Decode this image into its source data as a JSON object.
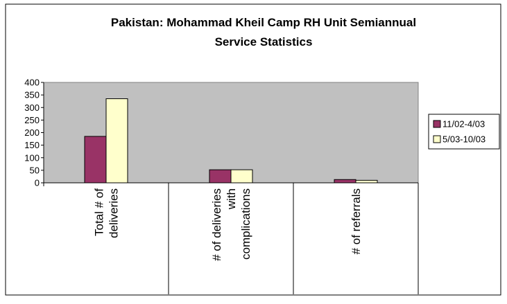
{
  "chart_data": {
    "type": "bar",
    "title": "Pakistan: Mohammad Kheil Camp RH Unit Semiannual Service Statistics",
    "categories": [
      "Total # of deliveries",
      "# of deliveries with complications",
      "# of referrals"
    ],
    "series": [
      {
        "name": "11/02-4/03",
        "color": "#993366",
        "values": [
          185,
          52,
          13
        ]
      },
      {
        "name": "5/03-10/03",
        "color": "#ffffcc",
        "values": [
          335,
          52,
          10
        ]
      }
    ],
    "ylim": [
      0,
      400
    ],
    "yticks": [
      0,
      50,
      100,
      150,
      200,
      250,
      300,
      350,
      400
    ],
    "legend": "right"
  }
}
